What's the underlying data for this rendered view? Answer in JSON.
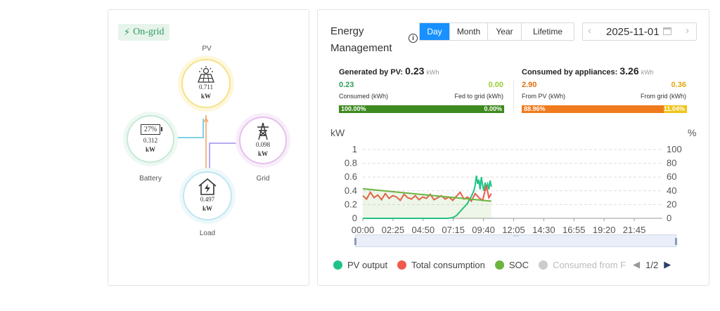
{
  "flow": {
    "status": "On-grid",
    "pv": {
      "label": "PV",
      "value": "0.711",
      "unit": "kW"
    },
    "battery": {
      "label": "Battery",
      "percent": "27%",
      "value": "0.312",
      "unit": "kW"
    },
    "grid": {
      "label": "Grid",
      "value": "0.098",
      "unit": "kW"
    },
    "load": {
      "label": "Load",
      "value": "0.497",
      "unit": "kW"
    }
  },
  "energy": {
    "title": "Energy Management",
    "tabs": [
      "Day",
      "Month",
      "Year",
      "Lifetime"
    ],
    "active_tab": "Day",
    "date": "2025-11-01",
    "generated": {
      "label": "Generated by PV:",
      "value": "0.23",
      "unit": "kWh",
      "consumed_value": "0.23",
      "fed_value": "0.00",
      "consumed_label": "Consumed (kWh)",
      "fed_label": "Fed to grid (kWh)",
      "bar_left": "100.00%",
      "bar_right": "0.00%",
      "bar_left_pct": 100
    },
    "consumed": {
      "label": "Consumed by appliances:",
      "value": "3.26",
      "unit": "kWh",
      "from_pv_value": "2.90",
      "from_grid_value": "0.36",
      "from_pv_label": "From PV (kWh)",
      "from_grid_label": "From grid (kWh)",
      "bar_left": "88.96%",
      "bar_right": "11.04%",
      "bar_left_pct": 88.96
    },
    "legend": {
      "items": [
        "PV output",
        "Total consumption",
        "SOC",
        "Consumed from F"
      ],
      "page": "1/2"
    },
    "colors": {
      "accent": "#1890ff",
      "pv": "#1ec486",
      "consumption": "#f05a4a",
      "soc": "#6db33f",
      "green_bar": "#3d8a1f",
      "orange_bar": "#f07b1d",
      "yellow_bar": "#f0c419"
    }
  },
  "chart_data": {
    "type": "line",
    "ylabel_left": "kW",
    "ylabel_right": "%",
    "ylim": [
      0,
      1
    ],
    "y2lim": [
      0,
      100
    ],
    "yticks": [
      "1",
      "0.8",
      "0.6",
      "0.4",
      "0.2",
      "0"
    ],
    "y2ticks": [
      "100",
      "80",
      "60",
      "40",
      "20",
      "0"
    ],
    "xticks": [
      "00:00",
      "02:25",
      "04:50",
      "07:15",
      "09:40",
      "12:05",
      "14:30",
      "16:55",
      "19:20",
      "21:45"
    ],
    "x_hours_range": [
      0,
      24
    ],
    "grid": true,
    "series": [
      {
        "name": "PV output",
        "color": "#1ec486",
        "x": [
          0,
          6.8,
          7.2,
          7.5,
          7.8,
          8.0,
          8.2,
          8.4,
          8.5,
          8.7,
          8.9,
          9.0,
          9.1,
          9.2,
          9.3,
          9.4,
          9.5,
          9.6,
          9.7,
          9.8,
          9.9,
          10.0,
          10.1,
          10.2,
          10.3
        ],
        "y": [
          0.0,
          0.0,
          0.01,
          0.04,
          0.1,
          0.14,
          0.18,
          0.22,
          0.26,
          0.32,
          0.4,
          0.48,
          0.62,
          0.5,
          0.56,
          0.42,
          0.6,
          0.48,
          0.4,
          0.52,
          0.44,
          0.5,
          0.42,
          0.55,
          0.46
        ]
      },
      {
        "name": "Total consumption",
        "color": "#f05a4a",
        "x": [
          0,
          0.3,
          0.6,
          0.9,
          1.2,
          1.5,
          1.8,
          2.1,
          2.4,
          2.7,
          3.0,
          3.3,
          3.6,
          3.9,
          4.2,
          4.5,
          4.8,
          5.1,
          5.4,
          5.7,
          6.0,
          6.3,
          6.6,
          6.9,
          7.2,
          7.5,
          7.8,
          8.1,
          8.4,
          8.7,
          9.0,
          9.3,
          9.6,
          9.9,
          10.1,
          10.3
        ],
        "y": [
          0.33,
          0.28,
          0.38,
          0.3,
          0.34,
          0.27,
          0.36,
          0.29,
          0.33,
          0.31,
          0.26,
          0.35,
          0.3,
          0.28,
          0.33,
          0.27,
          0.31,
          0.29,
          0.35,
          0.27,
          0.3,
          0.33,
          0.28,
          0.31,
          0.26,
          0.32,
          0.38,
          0.28,
          0.31,
          0.25,
          0.36,
          0.3,
          0.26,
          0.48,
          0.3,
          0.36
        ]
      },
      {
        "name": "SOC",
        "color": "#6db33f",
        "axis": "right",
        "x": [
          0,
          10.3
        ],
        "y": [
          43,
          25
        ]
      }
    ]
  }
}
